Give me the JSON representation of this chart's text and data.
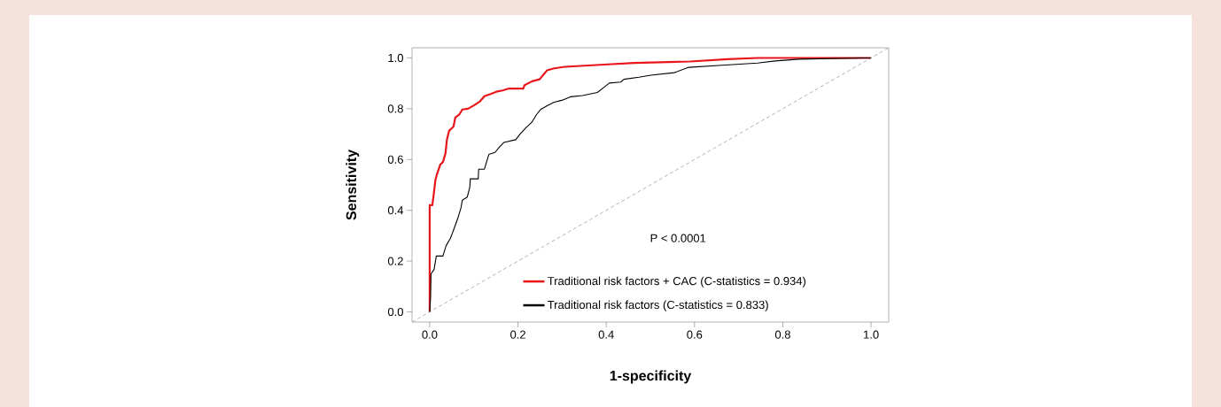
{
  "chart_data": {
    "type": "line",
    "xlabel": "1-specificity",
    "ylabel": "Sensitivity",
    "xlim": [
      -0.04,
      1.04
    ],
    "ylim": [
      -0.04,
      1.04
    ],
    "xticks": [
      {
        "value": 0,
        "label": "0.0"
      },
      {
        "value": 0.2,
        "label": "0.2"
      },
      {
        "value": 0.4,
        "label": "0.4"
      },
      {
        "value": 0.6,
        "label": "0.6"
      },
      {
        "value": 0.8,
        "label": "0.8"
      },
      {
        "value": 1,
        "label": "1.0"
      }
    ],
    "yticks": [
      {
        "value": 0,
        "label": "0.0"
      },
      {
        "value": 0.2,
        "label": "0.2"
      },
      {
        "value": 0.4,
        "label": "0.4"
      },
      {
        "value": 0.6,
        "label": "0.6"
      },
      {
        "value": 0.8,
        "label": "0.8"
      },
      {
        "value": 1,
        "label": "1.0"
      }
    ],
    "grid": false,
    "legend": "bottom",
    "annotations": [
      "P < 0.0001"
    ],
    "series": [
      {
        "name": "Traditional risk factors + CAC (C-statistics = 0.934)",
        "color": "#e8161b",
        "x": [
          0,
          0,
          0.006,
          0.009,
          0.013,
          0.017,
          0.024,
          0.03,
          0.036,
          0.039,
          0.044,
          0.054,
          0.058,
          0.067,
          0.074,
          0.087,
          0.101,
          0.114,
          0.124,
          0.138,
          0.151,
          0.165,
          0.178,
          0.212,
          0.215,
          0.232,
          0.249,
          0.266,
          0.282,
          0.306,
          0.386,
          0.464,
          0.59,
          0.675,
          0.743,
          1.0
        ],
        "values": [
          0,
          0.42,
          0.42,
          0.46,
          0.52,
          0.545,
          0.58,
          0.59,
          0.626,
          0.678,
          0.713,
          0.73,
          0.765,
          0.777,
          0.797,
          0.8,
          0.814,
          0.829,
          0.849,
          0.858,
          0.867,
          0.872,
          0.879,
          0.879,
          0.893,
          0.908,
          0.916,
          0.951,
          0.959,
          0.965,
          0.973,
          0.98,
          0.986,
          0.995,
          1.0,
          1.0
        ]
      },
      {
        "name": "Traditional risk factors (C-statistics = 0.833)",
        "color": "#000000",
        "x": [
          0,
          0.002,
          0.003,
          0.01,
          0.015,
          0.03,
          0.037,
          0.047,
          0.057,
          0.064,
          0.071,
          0.074,
          0.085,
          0.091,
          0.092,
          0.11,
          0.111,
          0.124,
          0.134,
          0.148,
          0.158,
          0.168,
          0.195,
          0.205,
          0.218,
          0.232,
          0.242,
          0.252,
          0.266,
          0.282,
          0.299,
          0.319,
          0.346,
          0.38,
          0.393,
          0.407,
          0.433,
          0.44,
          0.474,
          0.501,
          0.554,
          0.587,
          0.662,
          0.743,
          0.783,
          0.837,
          0.984,
          1.0
        ],
        "values": [
          0,
          0.057,
          0.15,
          0.167,
          0.22,
          0.22,
          0.26,
          0.29,
          0.336,
          0.37,
          0.411,
          0.44,
          0.452,
          0.492,
          0.524,
          0.524,
          0.562,
          0.562,
          0.62,
          0.628,
          0.649,
          0.667,
          0.678,
          0.701,
          0.725,
          0.748,
          0.777,
          0.798,
          0.812,
          0.826,
          0.833,
          0.847,
          0.852,
          0.864,
          0.882,
          0.901,
          0.905,
          0.916,
          0.924,
          0.932,
          0.942,
          0.963,
          0.971,
          0.98,
          0.988,
          0.995,
          1.0,
          1.0
        ]
      },
      {
        "color": "#808080",
        "line_style": "dashed",
        "x": [
          -0.04,
          1.04
        ],
        "values": [
          -0.04,
          1.04
        ]
      }
    ]
  }
}
